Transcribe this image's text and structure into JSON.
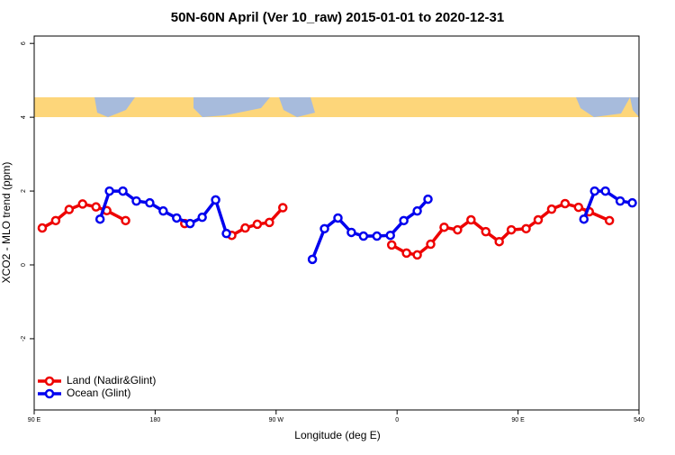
{
  "chart_data": {
    "type": "line",
    "title": "50N-60N April (Ver 10_raw)   2015-01-01 to 2020-12-31",
    "x_label": "Longitude (deg E)",
    "y_label": "XCO2 - MLO trend (ppm)",
    "xlim": [
      90,
      540
    ],
    "ylim": [
      -3.93,
      6.2
    ],
    "xticks": [
      {
        "value": 90,
        "label": "90 E"
      },
      180,
      {
        "value": 270,
        "label": "90 W"
      },
      {
        "value": 360,
        "label": "0"
      },
      {
        "value": 450,
        "label": "90 E"
      },
      540
    ],
    "yticks": [
      -2,
      0,
      2,
      4,
      6
    ],
    "legend": "bottomleft",
    "series": [
      {
        "name": "Land (Nadir&Glint)",
        "color": "#ee0000",
        "x": [
          96,
          106,
          116,
          126,
          136,
          144,
          158,
          null,
          202,
          null,
          237,
          247,
          256,
          265,
          275,
          null,
          356,
          367,
          375,
          385,
          395,
          405,
          415,
          426,
          436,
          445,
          456,
          465,
          475,
          485,
          495,
          503,
          518
        ],
        "values": [
          1.0,
          1.2,
          1.5,
          1.65,
          1.57,
          1.47,
          1.2,
          null,
          1.12,
          null,
          0.8,
          1.0,
          1.1,
          1.15,
          1.55,
          null,
          0.54,
          0.32,
          0.27,
          0.56,
          1.02,
          0.95,
          1.22,
          0.9,
          0.63,
          0.95,
          0.98,
          1.22,
          1.51,
          1.66,
          1.56,
          1.44,
          1.2
        ]
      },
      {
        "name": "Ocean (Glint)",
        "color": "#0000ee",
        "x": [
          139,
          146,
          156,
          166,
          176,
          186,
          196,
          206,
          215,
          225,
          233,
          null,
          297,
          306,
          316,
          326,
          335,
          345,
          355,
          365,
          375,
          383,
          null,
          499,
          507,
          515,
          526,
          535
        ],
        "values": [
          1.24,
          2.0,
          2.0,
          1.73,
          1.68,
          1.46,
          1.27,
          1.12,
          1.29,
          1.76,
          0.85,
          null,
          0.15,
          0.98,
          1.27,
          0.88,
          0.78,
          0.78,
          0.8,
          1.2,
          1.46,
          1.78,
          null,
          1.24,
          2.0,
          2.0,
          1.73,
          1.68
        ]
      }
    ]
  }
}
